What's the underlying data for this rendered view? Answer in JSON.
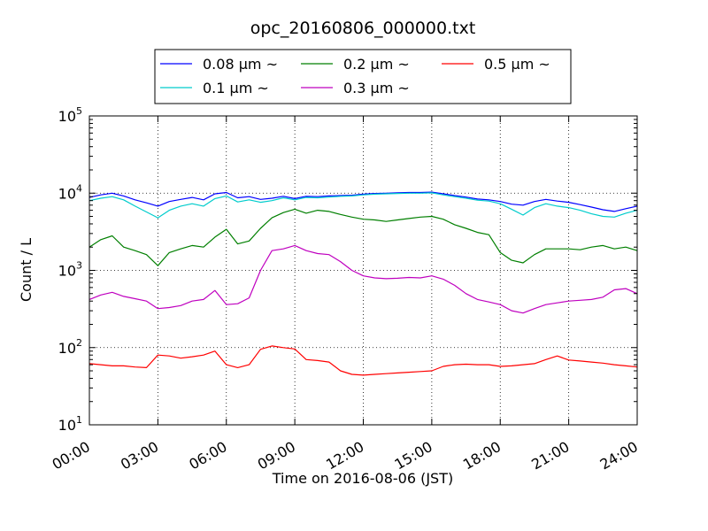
{
  "chart_data": {
    "type": "line",
    "title": "opc_20160806_000000.txt",
    "xlabel": "Time on 2016-08-06 (JST)",
    "ylabel": "Count / L",
    "xlim": [
      "2016-08-06 00:00",
      "2016-08-07 00:00"
    ],
    "ylim": [
      10,
      100000
    ],
    "yscale": "log",
    "grid": true,
    "legend_position": "top-center",
    "x_tick_labels": [
      "00:00",
      "03:00",
      "06:00",
      "09:00",
      "12:00",
      "15:00",
      "18:00",
      "21:00",
      "24:00"
    ],
    "y_ticks": [
      {
        "value": 10,
        "base": "10",
        "exp": "1"
      },
      {
        "value": 100,
        "base": "10",
        "exp": "2"
      },
      {
        "value": 1000,
        "base": "10",
        "exp": "3"
      },
      {
        "value": 10000,
        "base": "10",
        "exp": "4"
      },
      {
        "value": 100000,
        "base": "10",
        "exp": "5"
      }
    ],
    "x": [
      "00:00",
      "00:30",
      "01:00",
      "01:30",
      "02:00",
      "02:30",
      "03:00",
      "03:30",
      "04:00",
      "04:30",
      "05:00",
      "05:30",
      "06:00",
      "06:30",
      "07:00",
      "07:30",
      "08:00",
      "08:30",
      "09:00",
      "09:30",
      "10:00",
      "10:30",
      "11:00",
      "11:30",
      "12:00",
      "12:30",
      "13:00",
      "13:30",
      "14:00",
      "14:30",
      "15:00",
      "15:30",
      "16:00",
      "16:30",
      "17:00",
      "17:30",
      "18:00",
      "18:30",
      "19:00",
      "19:30",
      "20:00",
      "20:30",
      "21:00",
      "21:30",
      "22:00",
      "22:30",
      "23:00",
      "23:30",
      "24:00"
    ],
    "series": [
      {
        "name": "0.08 μm ~",
        "color": "#0000ff",
        "values": [
          8800,
          9500,
          10000,
          9200,
          8200,
          7500,
          6800,
          7800,
          8300,
          8800,
          8200,
          9800,
          10200,
          8700,
          9000,
          8300,
          8600,
          9100,
          8500,
          9100,
          9000,
          9200,
          9300,
          9400,
          9700,
          9900,
          10000,
          10100,
          10200,
          10200,
          10300,
          9800,
          9300,
          8900,
          8400,
          8200,
          7800,
          7200,
          7000,
          7800,
          8300,
          7900,
          7600,
          7100,
          6600,
          6100,
          5800,
          6300,
          6800
        ]
      },
      {
        "name": "0.1 μm ~",
        "color": "#00cccc",
        "values": [
          8000,
          8600,
          9000,
          8200,
          6800,
          5700,
          4800,
          6000,
          6800,
          7300,
          6800,
          8500,
          9200,
          7700,
          8200,
          7600,
          8000,
          8700,
          8200,
          8800,
          8700,
          8900,
          9100,
          9200,
          9500,
          9700,
          9800,
          9900,
          10000,
          10000,
          10100,
          9500,
          9000,
          8600,
          8100,
          7900,
          7300,
          6200,
          5200,
          6500,
          7300,
          6800,
          6500,
          6000,
          5400,
          5000,
          4900,
          5500,
          6000
        ]
      },
      {
        "name": "0.2 μm ~",
        "color": "#007f00",
        "values": [
          2000,
          2500,
          2800,
          2000,
          1800,
          1600,
          1150,
          1700,
          1900,
          2100,
          2000,
          2700,
          3400,
          2200,
          2400,
          3500,
          4800,
          5600,
          6200,
          5500,
          6000,
          5800,
          5300,
          4900,
          4600,
          4500,
          4300,
          4500,
          4700,
          4900,
          5000,
          4600,
          3900,
          3500,
          3100,
          2900,
          1700,
          1350,
          1250,
          1600,
          1900,
          1900,
          1900,
          1850,
          2000,
          2100,
          1900,
          2000,
          1800
        ]
      },
      {
        "name": "0.3 μm ~",
        "color": "#bf00bf",
        "values": [
          420,
          480,
          520,
          460,
          430,
          400,
          320,
          330,
          350,
          400,
          420,
          550,
          360,
          370,
          440,
          1000,
          1800,
          1900,
          2100,
          1800,
          1650,
          1600,
          1300,
          1000,
          850,
          800,
          780,
          790,
          810,
          800,
          850,
          770,
          640,
          500,
          420,
          390,
          360,
          300,
          280,
          320,
          360,
          380,
          400,
          410,
          420,
          450,
          560,
          580,
          500
        ]
      },
      {
        "name": "0.5 μm ~",
        "color": "#ff0000",
        "values": [
          62,
          60,
          58,
          58,
          56,
          55,
          80,
          78,
          73,
          76,
          80,
          90,
          60,
          55,
          60,
          95,
          105,
          100,
          96,
          70,
          68,
          65,
          50,
          45,
          44,
          45,
          46,
          47,
          48,
          49,
          50,
          57,
          60,
          61,
          60,
          60,
          57,
          58,
          60,
          62,
          70,
          78,
          69,
          67,
          65,
          63,
          60,
          58,
          56
        ]
      }
    ]
  }
}
